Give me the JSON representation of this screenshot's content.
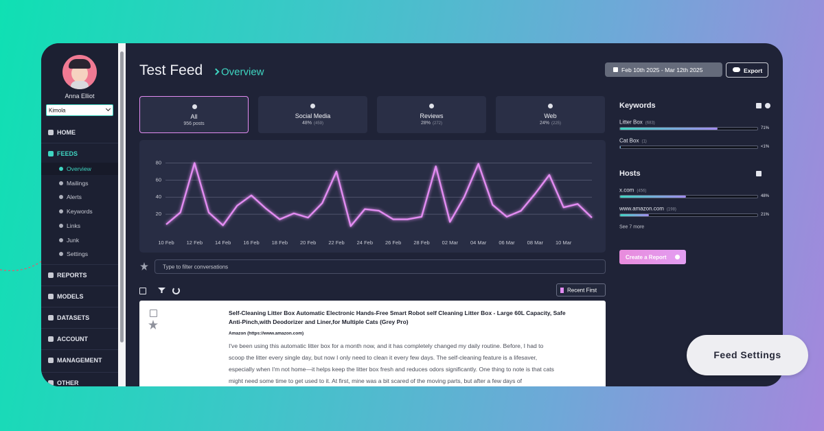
{
  "sidebar": {
    "user_name": "Anna Elliot",
    "workspace": "Kimola",
    "nav": [
      {
        "label": "HOME"
      },
      {
        "label": "FEEDS",
        "items": [
          "Overview",
          "Mailings",
          "Alerts",
          "Keywords",
          "Links",
          "Junk",
          "Settings"
        ]
      },
      {
        "label": "REPORTS"
      },
      {
        "label": "MODELS"
      },
      {
        "label": "DATASETS"
      },
      {
        "label": "ACCOUNT"
      },
      {
        "label": "MANAGEMENT"
      },
      {
        "label": "OTHER"
      }
    ]
  },
  "header": {
    "title": "Test Feed",
    "breadcrumb": "Overview",
    "date_range": "Feb 10th 2025 - Mar 12th 2025",
    "export": "Export"
  },
  "tabs": [
    {
      "label": "All",
      "stat": "956 posts"
    },
    {
      "label": "Social Media",
      "stat": "48%",
      "count": "(459)"
    },
    {
      "label": "Reviews",
      "stat": "28%",
      "count": "(272)"
    },
    {
      "label": "Web",
      "stat": "24%",
      "count": "(225)"
    }
  ],
  "chart_data": {
    "type": "line",
    "categories": [
      "10 Feb",
      null,
      "12 Feb",
      null,
      "14 Feb",
      null,
      "16 Feb",
      null,
      "18 Feb",
      null,
      "20 Feb",
      null,
      "22 Feb",
      null,
      "24 Feb",
      null,
      "26 Feb",
      null,
      "28 Feb",
      null,
      "02 Mar",
      null,
      "04 Mar",
      null,
      "06 Mar",
      null,
      "08 Mar",
      null,
      "10 Mar",
      null,
      null
    ],
    "series": [
      {
        "name": null,
        "color": "#e38cf2",
        "values": [
          8,
          22,
          80,
          22,
          7,
          30,
          42,
          27,
          14,
          21,
          16,
          33,
          70,
          6,
          26,
          24,
          14,
          14,
          17,
          76,
          11,
          40,
          79,
          31,
          17,
          24,
          44,
          66,
          28,
          32,
          16
        ]
      }
    ],
    "ylim": [
      0,
      86
    ],
    "yticks": [
      20,
      40,
      60,
      80
    ],
    "grid": true
  },
  "filter_placeholder": "Type to filter conversations",
  "sort": "Recent First",
  "post": {
    "title_lines": [
      "Self-Cleaning Litter Box Automatic Electronic Hands-Free Smart Robot self Cleaning Litter Box - Large 60L Capacity, Safe",
      "Anti-Pinch,with Deodorizer and Liner,for Multiple Cats (Grey Pro)"
    ],
    "source": "Amazon (https://www.amazon.com)",
    "body_lines": [
      "I've been using this automatic litter box for a month now, and it has completely changed my daily routine. Before, I had to",
      "scoop the litter every single day, but now I only need to clean it every few days. The self-cleaning feature is a lifesaver,",
      "especially when I'm not home—it helps keep the litter box fresh and reduces odors significantly. One thing to note is that cats",
      "might need some time to get used to it. At first, mine was a bit scared of the moving parts, but after a few days of"
    ]
  },
  "keywords": {
    "title": "Keywords",
    "items": [
      {
        "name": "Litter Box",
        "count": "(683)",
        "share": 71,
        "share_label": "71%"
      },
      {
        "name": "Cat Box",
        "count": "(1)",
        "share": 0.5,
        "share_label": "<1%"
      }
    ]
  },
  "hosts": {
    "title": "Hosts",
    "items": [
      {
        "name": "x.com",
        "count": "(456)",
        "share": 48,
        "share_label": "48%"
      },
      {
        "name": "www.amazon.com",
        "count": "(198)",
        "share": 21,
        "share_label": "21%"
      }
    ],
    "more": "See 7 more"
  },
  "create_report": "Create a Report",
  "feed_settings": "Feed Settings"
}
